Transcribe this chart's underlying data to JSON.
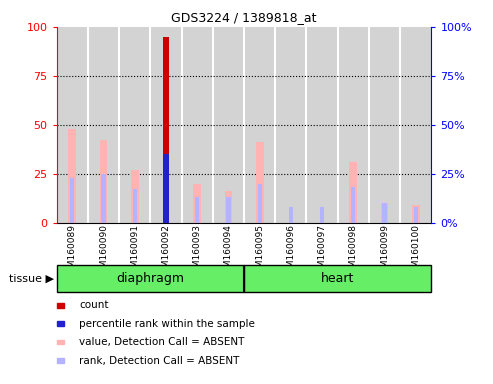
{
  "title": "GDS3224 / 1389818_at",
  "samples": [
    "GSM160089",
    "GSM160090",
    "GSM160091",
    "GSM160092",
    "GSM160093",
    "GSM160094",
    "GSM160095",
    "GSM160096",
    "GSM160097",
    "GSM160098",
    "GSM160099",
    "GSM160100"
  ],
  "tissue_groups": [
    {
      "label": "diaphragm",
      "start": 0,
      "end": 6
    },
    {
      "label": "heart",
      "start": 6,
      "end": 12
    }
  ],
  "value_absent": [
    48,
    42,
    27,
    0,
    20,
    16,
    41,
    0,
    0,
    31,
    10,
    9
  ],
  "rank_absent": [
    23,
    25,
    17,
    0,
    13,
    13,
    20,
    8,
    8,
    18,
    10,
    8
  ],
  "count": [
    0,
    0,
    0,
    95,
    0,
    0,
    0,
    0,
    0,
    0,
    0,
    0
  ],
  "percentile_rank": [
    0,
    0,
    0,
    35,
    0,
    0,
    0,
    0,
    0,
    0,
    0,
    0
  ],
  "ylim_left": [
    0,
    100
  ],
  "ylim_right": [
    0,
    100
  ],
  "yticks": [
    0,
    25,
    50,
    75,
    100
  ],
  "color_count": "#cc0000",
  "color_percentile": "#2222cc",
  "color_value_absent": "#ffb3b3",
  "color_rank_absent": "#b3b3ff",
  "tissue_color": "#66ee66",
  "bg_color": "#d3d3d3",
  "legend_entries": [
    {
      "color": "#cc0000",
      "label": "count"
    },
    {
      "color": "#2222cc",
      "label": "percentile rank within the sample"
    },
    {
      "color": "#ffb3b3",
      "label": "value, Detection Call = ABSENT"
    },
    {
      "color": "#b3b3ff",
      "label": "rank, Detection Call = ABSENT"
    }
  ]
}
